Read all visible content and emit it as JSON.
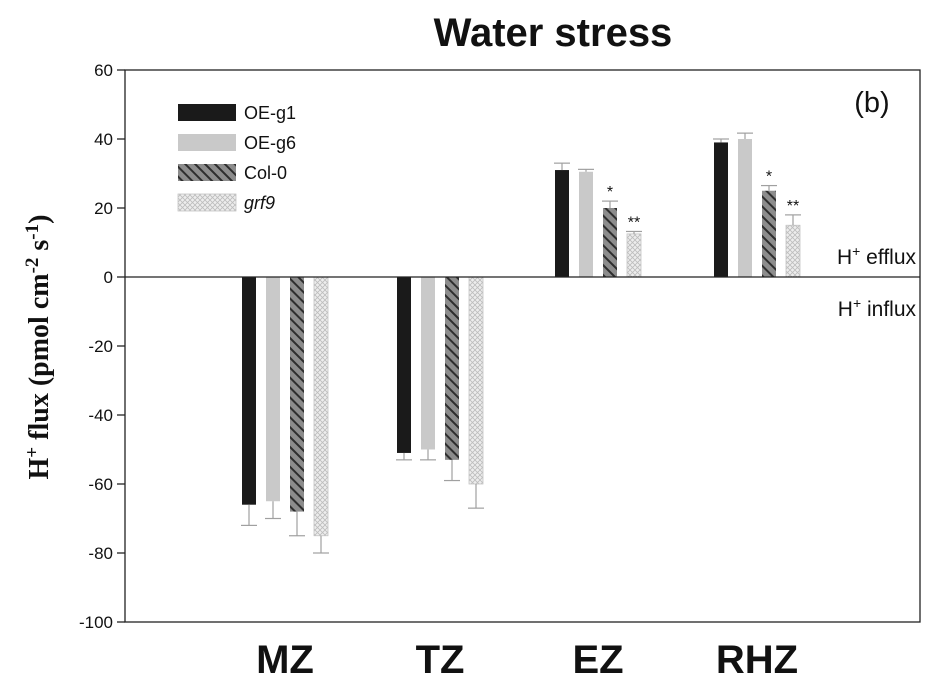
{
  "chart_data": {
    "type": "bar",
    "title": "Water stress",
    "panel_label": "(b)",
    "ylabel_parts": [
      "H",
      "+",
      " flux (pmol cm",
      "-2",
      " s",
      "-1",
      ")"
    ],
    "ylim": [
      -100,
      60
    ],
    "yticks": [
      60,
      40,
      20,
      0,
      -20,
      -40,
      -60,
      -80,
      -100
    ],
    "categories": [
      "MZ",
      "TZ",
      "EZ",
      "RHZ"
    ],
    "series": [
      {
        "name": "OE-g1",
        "values": [
          -66,
          -51,
          31,
          39
        ],
        "errors": [
          6,
          2,
          2,
          1
        ],
        "color": "#1a1a1a",
        "pattern": "solid"
      },
      {
        "name": "OE-g6",
        "values": [
          -65,
          -50,
          30.5,
          40
        ],
        "errors": [
          5,
          3,
          0.7,
          1.7
        ],
        "color": "#c9c9c9",
        "pattern": "solid"
      },
      {
        "name": "Col-0",
        "values": [
          -68,
          -53,
          20,
          25
        ],
        "errors": [
          7,
          6,
          2,
          1.5
        ],
        "color": "#4a4a4a",
        "pattern": "diagonal"
      },
      {
        "name": "grf9",
        "values": [
          -75,
          -60,
          12.5,
          15
        ],
        "errors": [
          5,
          7,
          0.7,
          3
        ],
        "color": "#dcdcdc",
        "pattern": "crosshatch",
        "italic": true
      }
    ],
    "significance": [
      {
        "category": "EZ",
        "series": "Col-0",
        "mark": "*"
      },
      {
        "category": "EZ",
        "series": "grf9",
        "mark": "**"
      },
      {
        "category": "RHZ",
        "series": "Col-0",
        "mark": "*"
      },
      {
        "category": "RHZ",
        "series": "grf9",
        "mark": "**"
      }
    ],
    "annotations": {
      "efflux": {
        "prefix": "H",
        "sup": "+",
        "text": " efflux"
      },
      "influx": {
        "prefix": "H",
        "sup": "+",
        "text": " influx"
      }
    },
    "legend_position": "top-left",
    "grid": false
  }
}
